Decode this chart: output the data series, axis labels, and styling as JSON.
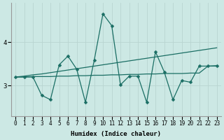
{
  "title": "",
  "xlabel": "Humidex (Indice chaleur)",
  "ylabel": "",
  "bg_color": "#cce8e4",
  "grid_color": "#b8d4d0",
  "line_color": "#1a6e64",
  "x": [
    0,
    1,
    2,
    3,
    4,
    5,
    6,
    7,
    8,
    9,
    10,
    11,
    12,
    13,
    14,
    15,
    16,
    17,
    18,
    19,
    20,
    21,
    22,
    23
  ],
  "y_zigzag": [
    3.2,
    3.2,
    3.2,
    2.78,
    2.68,
    3.48,
    3.68,
    3.38,
    2.62,
    3.58,
    4.65,
    4.38,
    3.02,
    3.22,
    3.22,
    2.62,
    3.78,
    3.32,
    2.68,
    3.12,
    3.08,
    3.45,
    3.45,
    3.45
  ],
  "y_trend_up": [
    3.2,
    3.22,
    3.25,
    3.27,
    3.3,
    3.33,
    3.36,
    3.39,
    3.42,
    3.45,
    3.48,
    3.51,
    3.54,
    3.57,
    3.6,
    3.63,
    3.66,
    3.69,
    3.72,
    3.75,
    3.78,
    3.81,
    3.84,
    3.87
  ],
  "y_trend_flat": [
    3.2,
    3.2,
    3.21,
    3.21,
    3.21,
    3.22,
    3.22,
    3.23,
    3.23,
    3.24,
    3.24,
    3.25,
    3.25,
    3.26,
    3.26,
    3.27,
    3.27,
    3.28,
    3.28,
    3.28,
    3.29,
    3.29,
    3.45,
    3.46
  ],
  "yticks": [
    3,
    4
  ],
  "ylim": [
    2.3,
    4.9
  ],
  "xlim": [
    -0.5,
    23.5
  ],
  "markersize": 2.5
}
